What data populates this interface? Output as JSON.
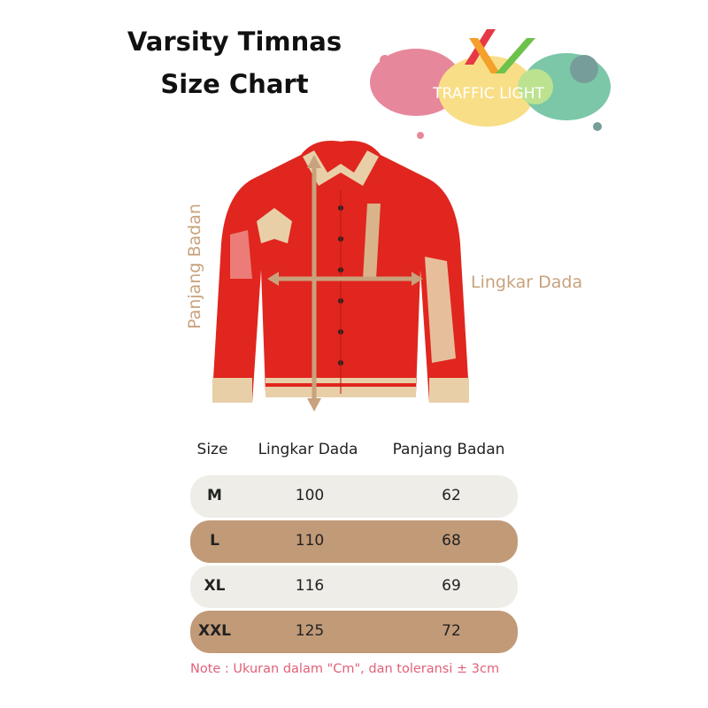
{
  "title": {
    "line1": "Varsity Timnas",
    "line2": "Size Chart"
  },
  "logo": {
    "text": "TRAFFIC LIGHT"
  },
  "measurements": {
    "length_label": "Panjang Badan",
    "chest_label": "Lingkar Dada",
    "arrow_color": "#c8a27c"
  },
  "table": {
    "headers": [
      "Size",
      "Lingkar Dada",
      "Panjang Badan"
    ],
    "rows": [
      {
        "size": "M",
        "chest": "100",
        "length": "62",
        "color": "#efede7"
      },
      {
        "size": "L",
        "chest": "110",
        "length": "68",
        "color": "#c19a78"
      },
      {
        "size": "XL",
        "chest": "116",
        "length": "69",
        "color": "#efede7"
      },
      {
        "size": "XXL",
        "chest": "125",
        "length": "72",
        "color": "#c19a78"
      }
    ]
  },
  "note": "Note : Ukuran dalam \"Cm\", dan toleransi ± 3cm"
}
